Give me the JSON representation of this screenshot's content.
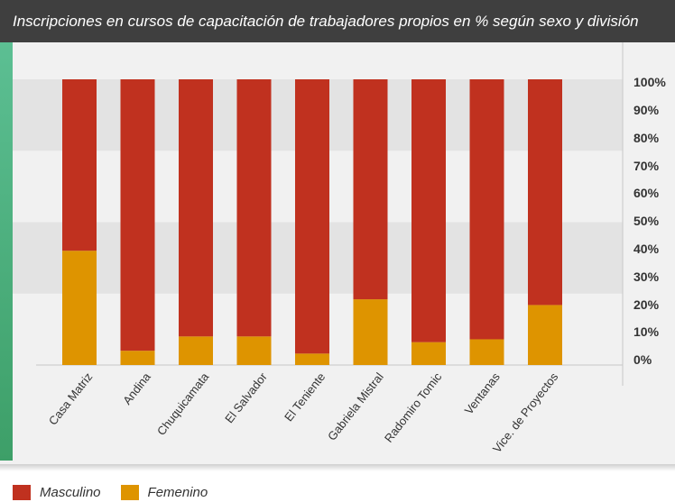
{
  "title": "Inscripciones en cursos de capacitación de trabajadores propios en % según sexo y división",
  "colors": {
    "masculino": "#c0311f",
    "femenino": "#de9400",
    "band": "#e3e3e3",
    "background": "#f1f1f1"
  },
  "legend": [
    {
      "name": "Masculino",
      "color": "#c0311f"
    },
    {
      "name": "Femenino",
      "color": "#de9400"
    }
  ],
  "chart_data": {
    "type": "bar",
    "stacked": true,
    "title": "Inscripciones en cursos de capacitación de trabajadores propios en % según sexo y división",
    "categories": [
      "Casa Matriz",
      "Andina",
      "Chuquicamata",
      "El Salvador",
      "El Teniente",
      "Gabriela Mistral",
      "Radomiro Tomic",
      "Ventanas",
      "Vice. de Proyectos"
    ],
    "series": [
      {
        "name": "Femenino",
        "values": [
          40,
          5,
          10,
          10,
          4,
          23,
          8,
          9,
          21
        ]
      },
      {
        "name": "Masculino",
        "values": [
          60,
          95,
          90,
          90,
          96,
          77,
          92,
          91,
          79
        ]
      }
    ],
    "yticks": [
      "0%",
      "10%",
      "20%",
      "30%",
      "40%",
      "50%",
      "60%",
      "70%",
      "80%",
      "90%",
      "100%"
    ],
    "ylim": [
      0,
      100
    ],
    "y_axis_position": "right",
    "legend_position": "bottom-left"
  }
}
